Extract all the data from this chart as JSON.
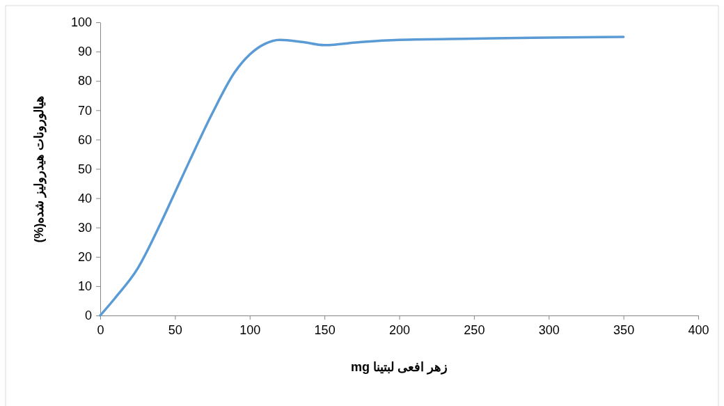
{
  "chart_data": {
    "type": "line",
    "xlabel": "زهر افعی لبتینا mg",
    "ylabel": "هیالورونات هیدرولیز شده(%)",
    "xlim": [
      0,
      400
    ],
    "xticks": [
      0,
      50,
      100,
      150,
      200,
      250,
      300,
      350,
      400
    ],
    "ylim": [
      0,
      100
    ],
    "yticks": [
      0,
      10,
      20,
      30,
      40,
      50,
      60,
      70,
      80,
      90,
      100
    ],
    "grid": false,
    "marker": "none",
    "line_style": "solid",
    "series": [
      {
        "color": "#5b9bd5",
        "x": [
          0,
          10,
          25,
          40,
          50,
          60,
          75,
          90,
          100,
          110,
          120,
          135,
          150,
          175,
          200,
          250,
          300,
          350
        ],
        "values": [
          0,
          6,
          16,
          31,
          42,
          53,
          69,
          83,
          89,
          92.6,
          94,
          93.3,
          92.2,
          93.3,
          94,
          94.4,
          94.8,
          95
        ]
      }
    ]
  }
}
